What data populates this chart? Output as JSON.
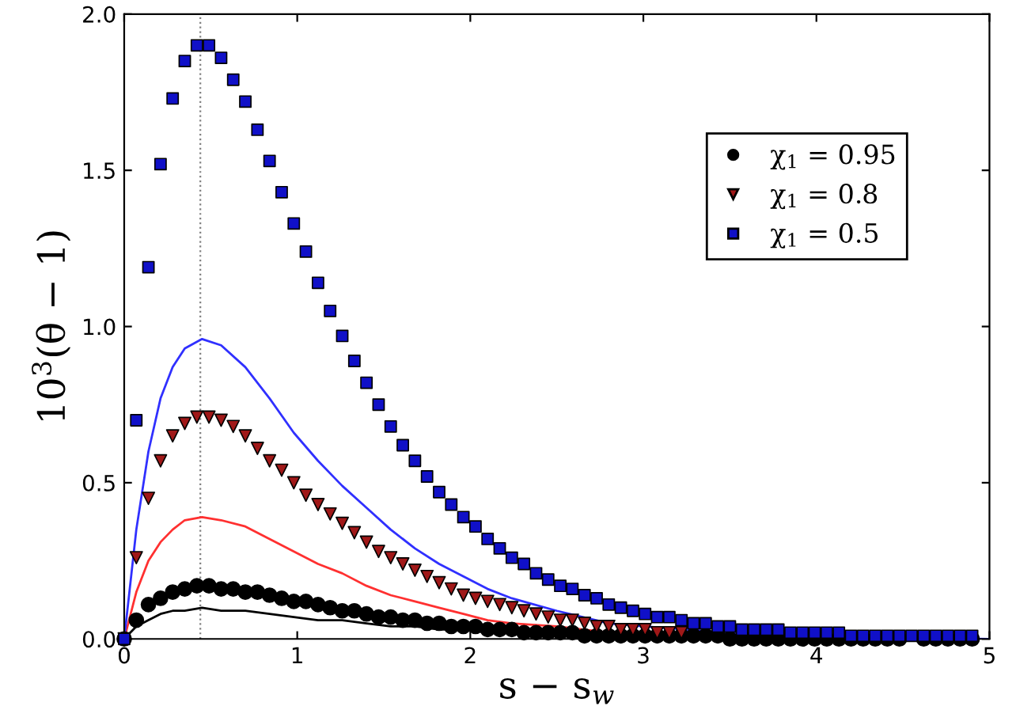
{
  "chart_data": {
    "type": "scatter",
    "xlabel": "s − s$_{w}$",
    "ylabel": "10$^{3}$(θ − 1)",
    "xlim": [
      0,
      5
    ],
    "ylim": [
      0,
      2.0
    ],
    "xticks": [
      0,
      1,
      2,
      3,
      4,
      5
    ],
    "yticks": [
      {
        "value": 0,
        "label": "0.0"
      },
      0.5,
      {
        "value": 1,
        "label": "1.0"
      },
      1.5,
      {
        "value": 2,
        "label": "2.0"
      }
    ],
    "grid": false,
    "legend": "top right",
    "ref_lines": [
      {
        "axis": "x",
        "value": 0.44,
        "color": "#808080",
        "line_style": "dotted"
      }
    ],
    "x": [
      0,
      0.07,
      0.14,
      0.21,
      0.28,
      0.35,
      0.42,
      0.49,
      0.56,
      0.63,
      0.7,
      0.77,
      0.84,
      0.91,
      0.98,
      1.05,
      1.12,
      1.19,
      1.26,
      1.33,
      1.4,
      1.47,
      1.54,
      1.61,
      1.68,
      1.75,
      1.82,
      1.89,
      1.96,
      2.03,
      2.1,
      2.17,
      2.24,
      2.31,
      2.38,
      2.45,
      2.52,
      2.59,
      2.66,
      2.73,
      2.8,
      2.87,
      2.94,
      3.01,
      3.08,
      3.15,
      3.22,
      3.29,
      3.36,
      3.43,
      3.5,
      3.57,
      3.64,
      3.71,
      3.78,
      3.85,
      3.92,
      3.99,
      4.06,
      4.13,
      4.2,
      4.27,
      4.34,
      4.41,
      4.48,
      4.55,
      4.62,
      4.69,
      4.76,
      4.83,
      4.9
    ],
    "series": [
      {
        "name": "χ$_{1}$ = 0.95",
        "marker": "circle",
        "color": "#000000",
        "values": [
          0,
          0.06,
          0.11,
          0.13,
          0.15,
          0.16,
          0.17,
          0.17,
          0.16,
          0.16,
          0.15,
          0.15,
          0.14,
          0.13,
          0.12,
          0.12,
          0.11,
          0.1,
          0.09,
          0.09,
          0.08,
          0.07,
          0.07,
          0.06,
          0.06,
          0.05,
          0.05,
          0.04,
          0.04,
          0.04,
          0.03,
          0.03,
          0.03,
          0.02,
          0.02,
          0.02,
          0.02,
          0.02,
          0.01,
          0.01,
          0.01,
          0.01,
          0.01,
          0.01,
          0.01,
          0.01,
          0.01,
          0.01,
          0.01,
          0.01,
          0,
          0,
          0,
          0,
          0,
          0,
          0,
          0,
          0,
          0,
          0,
          0,
          0,
          0,
          0,
          null,
          0,
          0,
          0,
          0,
          0
        ]
      },
      {
        "name": "χ$_{1}$ = 0.8",
        "marker": "triangle",
        "color": "#a01818",
        "values": [
          0,
          0.26,
          0.45,
          0.57,
          0.65,
          0.69,
          0.71,
          0.71,
          0.7,
          0.68,
          0.65,
          0.61,
          0.57,
          0.54,
          0.5,
          0.46,
          0.43,
          0.4,
          0.37,
          0.34,
          0.31,
          0.28,
          0.26,
          0.24,
          0.22,
          0.2,
          0.18,
          0.16,
          0.14,
          0.13,
          0.12,
          0.11,
          0.1,
          0.09,
          0.08,
          0.07,
          0.06,
          0.06,
          0.05,
          0.04,
          0.04,
          0.03,
          0.03,
          0.03,
          0.02,
          0.02,
          0.02,
          null,
          null,
          null,
          null,
          null,
          null,
          null,
          null,
          null,
          null,
          null,
          null,
          null,
          null,
          null,
          null,
          null,
          null,
          null,
          null,
          null,
          null,
          null,
          null
        ]
      },
      {
        "name": "χ$_{1}$ = 0.5",
        "marker": "square",
        "color": "#1010c8",
        "values": [
          0,
          0.7,
          1.19,
          1.52,
          1.73,
          1.85,
          1.9,
          1.9,
          1.86,
          1.79,
          1.72,
          1.63,
          1.53,
          1.43,
          1.33,
          1.24,
          1.14,
          1.05,
          0.97,
          0.89,
          0.82,
          0.75,
          0.68,
          0.62,
          0.57,
          0.52,
          0.47,
          0.43,
          0.39,
          0.36,
          0.32,
          0.29,
          0.26,
          0.24,
          0.21,
          0.19,
          0.17,
          0.16,
          0.14,
          0.13,
          0.11,
          0.1,
          0.09,
          0.08,
          0.07,
          0.07,
          0.06,
          0.05,
          0.05,
          0.04,
          0.04,
          0.03,
          0.03,
          0.03,
          0.03,
          0.02,
          0.02,
          0.02,
          0.02,
          0.02,
          0.01,
          0.01,
          0.01,
          0.01,
          0.01,
          0.01,
          0.01,
          0.01,
          0.01,
          0.01,
          0.01
        ]
      },
      {
        "type": "line",
        "line_style": "solid",
        "color": "#000000",
        "x": [
          0,
          0.07,
          0.14,
          0.21,
          0.28,
          0.35,
          0.45,
          0.56,
          0.7,
          0.84,
          0.98,
          1.12,
          1.26,
          1.4,
          1.54,
          1.68,
          1.82,
          1.96,
          2.1,
          2.24,
          2.5,
          2.8,
          3
        ],
        "values": [
          0,
          0.04,
          0.06,
          0.08,
          0.09,
          0.09,
          0.1,
          0.09,
          0.09,
          0.08,
          0.07,
          0.06,
          0.06,
          0.05,
          0.04,
          0.04,
          0.03,
          0.03,
          0.02,
          0.02,
          0.01,
          0.01,
          0.01
        ]
      },
      {
        "type": "line",
        "line_style": "solid",
        "color": "#ff3030",
        "x": [
          0,
          0.07,
          0.14,
          0.21,
          0.28,
          0.35,
          0.45,
          0.56,
          0.7,
          0.84,
          0.98,
          1.12,
          1.26,
          1.4,
          1.54,
          1.68,
          1.82,
          1.96,
          2.1,
          2.24,
          2.5,
          2.8,
          3
        ],
        "values": [
          0,
          0.15,
          0.25,
          0.31,
          0.35,
          0.38,
          0.39,
          0.38,
          0.36,
          0.32,
          0.28,
          0.24,
          0.21,
          0.17,
          0.14,
          0.12,
          0.1,
          0.08,
          0.06,
          0.05,
          0.04,
          0.02,
          0.02
        ]
      },
      {
        "type": "line",
        "line_style": "solid",
        "color": "#3030ff",
        "x": [
          0,
          0.07,
          0.14,
          0.21,
          0.28,
          0.35,
          0.45,
          0.56,
          0.7,
          0.84,
          0.98,
          1.12,
          1.26,
          1.4,
          1.54,
          1.68,
          1.82,
          1.96,
          2.1,
          2.24,
          2.5,
          2.8,
          3,
          3.5,
          4,
          5
        ],
        "values": [
          0,
          0.35,
          0.6,
          0.77,
          0.87,
          0.93,
          0.96,
          0.94,
          0.87,
          0.77,
          0.66,
          0.57,
          0.49,
          0.42,
          0.35,
          0.29,
          0.24,
          0.2,
          0.16,
          0.13,
          0.09,
          0.05,
          0.04,
          0.02,
          0.01,
          0
        ]
      }
    ]
  }
}
